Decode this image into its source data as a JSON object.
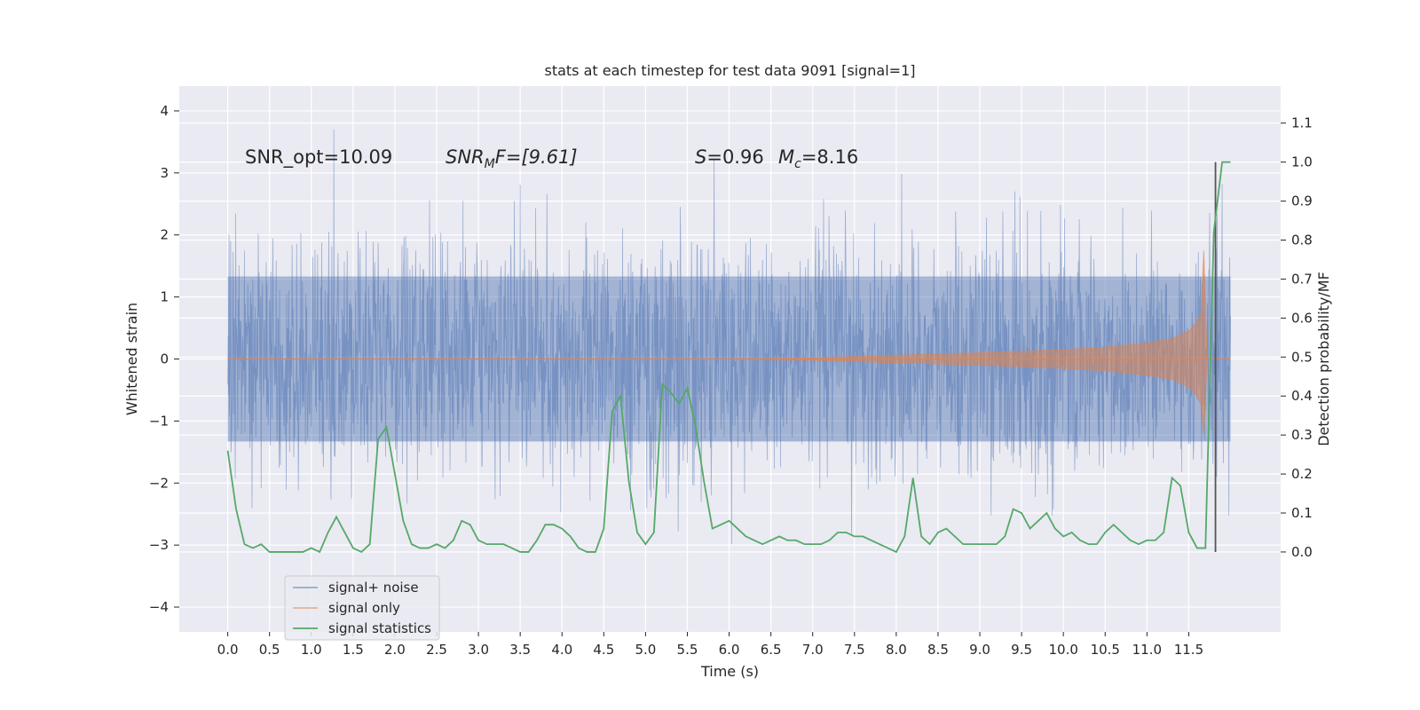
{
  "chart_data": {
    "type": "line",
    "title": "stats at each timestep for test data 9091 [signal=1]",
    "xlabel": "Time (s)",
    "ylabel": "Whitened strain",
    "y2label": "Detection probability/MF",
    "xlim": [
      -0.58,
      12.6
    ],
    "ylim": [
      -4.4,
      4.4
    ],
    "y2lim": [
      -0.205,
      1.195
    ],
    "x_ticks": [
      0.0,
      0.5,
      1.0,
      1.5,
      2.0,
      2.5,
      3.0,
      3.5,
      4.0,
      4.5,
      5.0,
      5.5,
      6.0,
      6.5,
      7.0,
      7.5,
      8.0,
      8.5,
      9.0,
      9.5,
      10.0,
      10.5,
      11.0,
      11.5
    ],
    "x_tick_labels": [
      "0.0",
      "0.5",
      "1.0",
      "1.5",
      "2.0",
      "2.5",
      "3.0",
      "3.5",
      "4.0",
      "4.5",
      "5.0",
      "5.5",
      "6.0",
      "6.5",
      "7.0",
      "7.5",
      "8.0",
      "8.5",
      "9.0",
      "9.5",
      "10.0",
      "10.5",
      "11.0",
      "11.5"
    ],
    "y_ticks": [
      4,
      3,
      2,
      1,
      0,
      -1,
      -2,
      -3,
      -4
    ],
    "y_tick_labels": [
      "4",
      "3",
      "2",
      "1",
      "0",
      "−1",
      "−2",
      "−3",
      "−4"
    ],
    "y2_ticks": [
      1.1,
      1.0,
      0.9,
      0.8,
      0.7,
      0.6,
      0.5,
      0.4,
      0.3,
      0.2,
      0.1,
      0.0
    ],
    "y2_tick_labels": [
      "1.1",
      "1.0",
      "0.9",
      "0.8",
      "0.7",
      "0.6",
      "0.5",
      "0.4",
      "0.3",
      "0.2",
      "0.1",
      "0.0"
    ],
    "grid": true,
    "legend_position": "lower-left",
    "legend": [
      "signal+ noise",
      "signal only",
      "signal statistics"
    ],
    "annotations": {
      "snr_opt": "SNR_opt=10.09",
      "snr_mf_base": "SNR",
      "snr_mf_sub": "M",
      "snr_mf_rest": "F=[9.61]",
      "s_sym": "S",
      "s_val": "=0.96",
      "mc_sym": "M",
      "mc_sub": "c",
      "mc_val": "=8.16"
    },
    "series": [
      {
        "name": "signal+ noise",
        "color": "#4c72b0",
        "axis": "left",
        "t_range": [
          0.0,
          12.0
        ],
        "envelope_typical": [
          -1.9,
          1.9
        ],
        "envelope_peaks": [
          -4.0,
          4.1
        ]
      },
      {
        "name": "signal only",
        "color": "#dd8452",
        "axis": "left",
        "t": [
          0.0,
          6.0,
          7.0,
          8.0,
          9.0,
          10.0,
          10.5,
          11.0,
          11.3,
          11.5,
          11.6,
          11.65,
          11.68,
          11.72,
          12.0
        ],
        "envelope": [
          0.0,
          0.0,
          0.02,
          0.06,
          0.1,
          0.15,
          0.19,
          0.26,
          0.33,
          0.45,
          0.6,
          0.75,
          1.75,
          0.0,
          0.0
        ]
      },
      {
        "name": "signal statistics",
        "color": "#55a868",
        "axis": "right",
        "t": [
          0.0,
          0.1,
          0.2,
          0.3,
          0.4,
          0.5,
          0.6,
          0.7,
          0.8,
          0.9,
          1.0,
          1.1,
          1.2,
          1.3,
          1.4,
          1.5,
          1.6,
          1.7,
          1.8,
          1.9,
          2.0,
          2.1,
          2.2,
          2.3,
          2.4,
          2.5,
          2.6,
          2.7,
          2.8,
          2.9,
          3.0,
          3.1,
          3.2,
          3.3,
          3.4,
          3.5,
          3.6,
          3.7,
          3.8,
          3.9,
          4.0,
          4.1,
          4.2,
          4.3,
          4.4,
          4.5,
          4.6,
          4.7,
          4.8,
          4.9,
          5.0,
          5.1,
          5.2,
          5.3,
          5.4,
          5.5,
          5.6,
          5.7,
          5.8,
          5.9,
          6.0,
          6.1,
          6.2,
          6.3,
          6.4,
          6.5,
          6.6,
          6.7,
          6.8,
          6.9,
          7.0,
          7.1,
          7.2,
          7.3,
          7.4,
          7.5,
          7.6,
          7.7,
          7.8,
          7.9,
          8.0,
          8.1,
          8.2,
          8.3,
          8.4,
          8.5,
          8.6,
          8.7,
          8.8,
          8.9,
          9.0,
          9.1,
          9.2,
          9.3,
          9.4,
          9.5,
          9.6,
          9.7,
          9.8,
          9.9,
          10.0,
          10.1,
          10.2,
          10.3,
          10.4,
          10.5,
          10.6,
          10.7,
          10.8,
          10.9,
          11.0,
          11.1,
          11.2,
          11.3,
          11.4,
          11.5,
          11.6,
          11.7,
          11.8,
          11.9,
          12.0
        ],
        "values": [
          0.26,
          0.11,
          0.02,
          0.01,
          0.02,
          0.0,
          0.0,
          0.0,
          0.0,
          0.0,
          0.01,
          0.0,
          0.05,
          0.09,
          0.05,
          0.01,
          0.0,
          0.02,
          0.29,
          0.32,
          0.2,
          0.08,
          0.02,
          0.01,
          0.01,
          0.02,
          0.01,
          0.03,
          0.08,
          0.07,
          0.03,
          0.02,
          0.02,
          0.02,
          0.01,
          0.0,
          0.0,
          0.03,
          0.07,
          0.07,
          0.06,
          0.04,
          0.01,
          0.0,
          0.0,
          0.06,
          0.36,
          0.4,
          0.18,
          0.05,
          0.02,
          0.05,
          0.43,
          0.41,
          0.38,
          0.42,
          0.32,
          0.18,
          0.06,
          0.07,
          0.08,
          0.06,
          0.04,
          0.03,
          0.02,
          0.03,
          0.04,
          0.03,
          0.03,
          0.02,
          0.02,
          0.02,
          0.03,
          0.05,
          0.05,
          0.04,
          0.04,
          0.03,
          0.02,
          0.01,
          0.0,
          0.04,
          0.19,
          0.04,
          0.02,
          0.05,
          0.06,
          0.04,
          0.02,
          0.02,
          0.02,
          0.02,
          0.02,
          0.04,
          0.11,
          0.1,
          0.06,
          0.08,
          0.1,
          0.06,
          0.04,
          0.05,
          0.03,
          0.02,
          0.02,
          0.05,
          0.07,
          0.05,
          0.03,
          0.02,
          0.03,
          0.03,
          0.05,
          0.19,
          0.17,
          0.05,
          0.01,
          0.01,
          0.82,
          1.0,
          1.0
        ]
      }
    ],
    "merger_marker_t": 11.82
  }
}
